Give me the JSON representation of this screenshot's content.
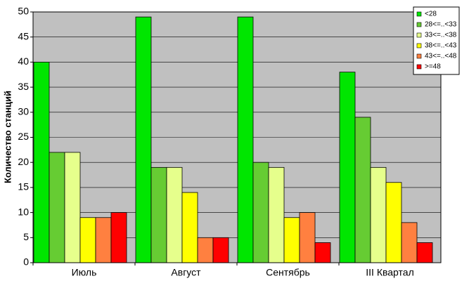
{
  "chart_data": {
    "type": "bar",
    "y_label": "Количество станций",
    "categories": [
      "Июль",
      "Август",
      "Сентябрь",
      "III Квартал"
    ],
    "series": [
      {
        "name": "<28",
        "color": "#00e600",
        "values": [
          40,
          49,
          49,
          38
        ]
      },
      {
        "name": "28<=..<33",
        "color": "#66cc33",
        "values": [
          22,
          19,
          20,
          29
        ]
      },
      {
        "name": "33<=..<38",
        "color": "#e6ff8c",
        "values": [
          22,
          19,
          19,
          19
        ]
      },
      {
        "name": "38<=..<43",
        "color": "#ffff00",
        "values": [
          9,
          14,
          9,
          16
        ]
      },
      {
        "name": "43<=..<48",
        "color": "#ff8040",
        "values": [
          9,
          5,
          10,
          8
        ]
      },
      {
        "name": ">=48",
        "color": "#ff0000",
        "values": [
          10,
          5,
          4,
          4
        ]
      }
    ],
    "ylim": [
      0,
      50
    ],
    "yticks": [
      0,
      5,
      10,
      15,
      20,
      25,
      30,
      35,
      40,
      45,
      50
    ],
    "grid": true,
    "legend": "top-right"
  }
}
